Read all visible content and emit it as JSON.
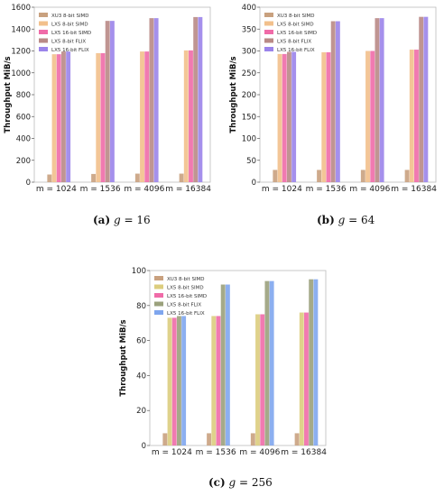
{
  "chart_data": [
    {
      "type": "bar",
      "caption": {
        "label": "(a)",
        "param": "g",
        "value": "= 16"
      },
      "ylabel": "Throughput MiB/s",
      "categories": [
        "m = 1024",
        "m = 1536",
        "m = 4096",
        "m = 16384"
      ],
      "ylim": [
        0,
        1600
      ],
      "yticks": [
        0,
        200,
        400,
        600,
        800,
        1000,
        1200,
        1400,
        1600
      ],
      "grid": false,
      "legend_position": "top-left",
      "series": [
        {
          "name": "XU3 8-bit SIMD",
          "color": "#c9a17f",
          "values": [
            70,
            75,
            78,
            78
          ]
        },
        {
          "name": "LX5 8-bit SIMD",
          "color": "#f2c08c",
          "values": [
            1170,
            1180,
            1195,
            1205
          ]
        },
        {
          "name": "LX5 16-bit SIMD",
          "color": "#f06ba8",
          "values": [
            1170,
            1180,
            1195,
            1205
          ]
        },
        {
          "name": "LX5 8-bit FLIX",
          "color": "#b98a86",
          "values": [
            1195,
            1475,
            1500,
            1510
          ]
        },
        {
          "name": "LX5 16-bit FLIX",
          "color": "#9b84ea",
          "values": [
            1195,
            1475,
            1500,
            1510
          ]
        }
      ]
    },
    {
      "type": "bar",
      "caption": {
        "label": "(b)",
        "param": "g",
        "value": "= 64"
      },
      "ylabel": "Throughput MiB/s",
      "categories": [
        "m = 1024",
        "m = 1536",
        "m = 4096",
        "m = 16384"
      ],
      "ylim": [
        0,
        400
      ],
      "yticks": [
        0,
        50,
        100,
        150,
        200,
        250,
        300,
        350,
        400
      ],
      "grid": false,
      "legend_position": "top-left",
      "series": [
        {
          "name": "XU3 8-bit SIMD",
          "color": "#c9a17f",
          "values": [
            28,
            28,
            28,
            28
          ]
        },
        {
          "name": "LX5 8-bit SIMD",
          "color": "#f2c08c",
          "values": [
            293,
            297,
            300,
            303
          ]
        },
        {
          "name": "LX5 16-bit SIMD",
          "color": "#f06ba8",
          "values": [
            293,
            297,
            300,
            303
          ]
        },
        {
          "name": "LX5 8-bit FLIX",
          "color": "#b98a86",
          "values": [
            298,
            368,
            375,
            378
          ]
        },
        {
          "name": "LX5 16-bit FLIX",
          "color": "#9b84ea",
          "values": [
            298,
            368,
            375,
            378
          ]
        }
      ]
    },
    {
      "type": "bar",
      "caption": {
        "label": "(c)",
        "param": "g",
        "value": "= 256"
      },
      "ylabel": "Throughput MiB/s",
      "categories": [
        "m = 1024",
        "m = 1536",
        "m = 4096",
        "m = 16384"
      ],
      "ylim": [
        0,
        100
      ],
      "yticks": [
        0,
        20,
        40,
        60,
        80,
        100
      ],
      "grid": false,
      "legend_position": "top-left",
      "series": [
        {
          "name": "XU3 8-bit SIMD",
          "color": "#c9a17f",
          "values": [
            7,
            7,
            7,
            7
          ]
        },
        {
          "name": "LX5 8-bit SIMD",
          "color": "#dccd7e",
          "values": [
            73,
            74,
            75,
            76
          ]
        },
        {
          "name": "LX5 16-bit SIMD",
          "color": "#f06ba8",
          "values": [
            73,
            74,
            75,
            76
          ]
        },
        {
          "name": "LX5 8-bit FLIX",
          "color": "#9ba17c",
          "values": [
            74,
            92,
            94,
            95
          ]
        },
        {
          "name": "LX5 16-bit FLIX",
          "color": "#7fa6ee",
          "values": [
            74,
            92,
            94,
            95
          ]
        }
      ]
    }
  ]
}
